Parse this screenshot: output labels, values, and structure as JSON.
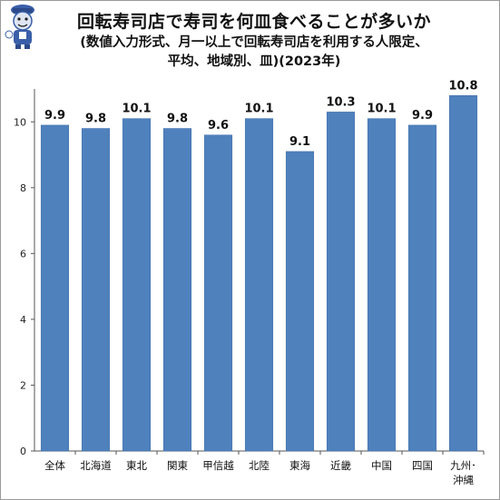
{
  "title": "回転寿司店で寿司を何皿食べることが多いか",
  "subtitle_line1": "(数値入力形式、月一以上で回転寿司店を利用する人限定、",
  "subtitle_line2": "平均、地域別、皿)(2023年)",
  "colors": {
    "bar": "#4f81bd",
    "bar_edge": "#3d6da8",
    "axis": "#555555"
  },
  "chart_data": {
    "type": "bar",
    "title": "回転寿司店で寿司を何皿食べることが多いか",
    "subtitle": "(数値入力形式、月一以上で回転寿司店を利用する人限定、平均、地域別、皿)(2023年)",
    "categories": [
      "全体",
      "北海道",
      "東北",
      "関東",
      "甲信越",
      "北陸",
      "東海",
      "近畿",
      "中国",
      "四国",
      "九州・沖縄"
    ],
    "category_lines": [
      [
        "全体"
      ],
      [
        "北海道"
      ],
      [
        "東北"
      ],
      [
        "関東"
      ],
      [
        "甲信越"
      ],
      [
        "北陸"
      ],
      [
        "東海"
      ],
      [
        "近畿"
      ],
      [
        "中国"
      ],
      [
        "四国"
      ],
      [
        "九州･",
        "沖縄"
      ]
    ],
    "values": [
      9.9,
      9.8,
      10.1,
      9.8,
      9.6,
      10.1,
      9.1,
      10.3,
      10.1,
      9.9,
      10.8
    ],
    "value_labels": [
      "9.9",
      "9.8",
      "10.1",
      "9.8",
      "9.6",
      "10.1",
      "9.1",
      "10.3",
      "10.1",
      "9.9",
      "10.8"
    ],
    "yticks": [
      0,
      2,
      4,
      6,
      8,
      10
    ],
    "ylim": [
      0,
      11
    ],
    "xlabel": "",
    "ylabel": "",
    "grid": false,
    "legend": "none"
  }
}
